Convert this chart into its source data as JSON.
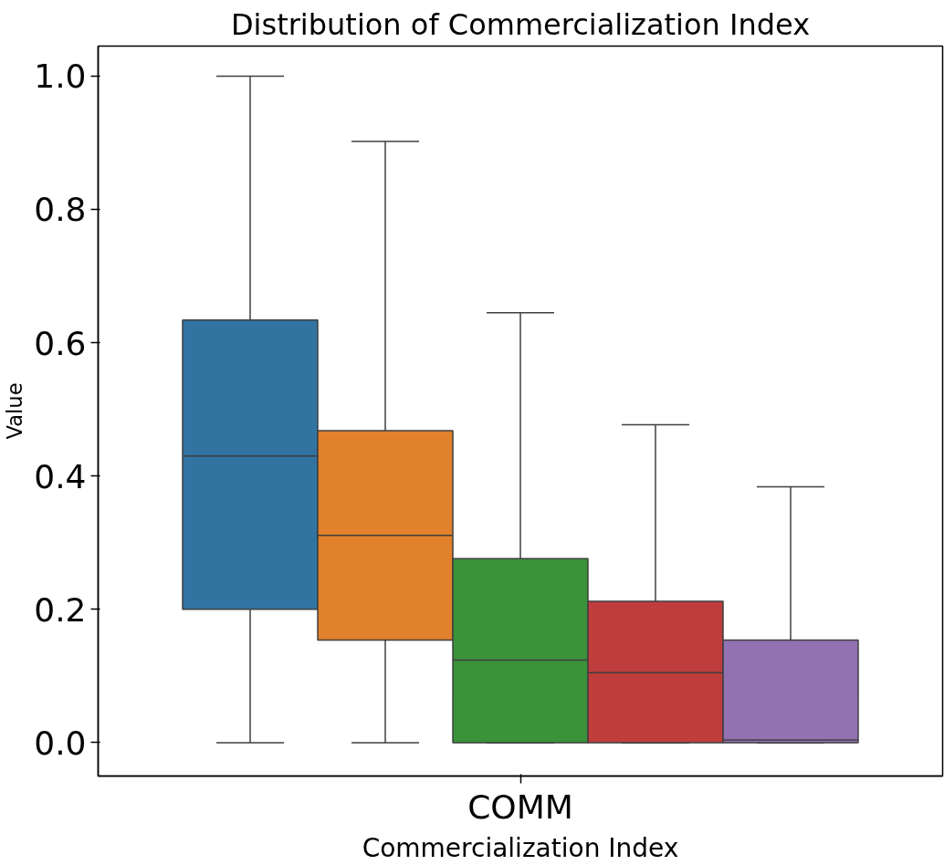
{
  "chart_data": {
    "type": "box",
    "title": "Distribution of Commercialization Index",
    "xlabel": "Commercialization Index",
    "ylabel": "Value",
    "categories": [
      "COMM"
    ],
    "series": [
      {
        "color": "#3274a1",
        "boxes": [
          {
            "low": 0.0,
            "q1": 0.2,
            "median": 0.43,
            "q3": 0.634,
            "high": 1.0
          }
        ]
      },
      {
        "color": "#e1812c",
        "boxes": [
          {
            "low": 0.0,
            "q1": 0.154,
            "median": 0.311,
            "q3": 0.468,
            "high": 0.902
          }
        ]
      },
      {
        "color": "#3a923a",
        "boxes": [
          {
            "low": 0.0,
            "q1": 0.0,
            "median": 0.124,
            "q3": 0.276,
            "high": 0.645
          }
        ]
      },
      {
        "color": "#c03d3e",
        "boxes": [
          {
            "low": 0.0,
            "q1": 0.0,
            "median": 0.105,
            "q3": 0.212,
            "high": 0.477
          }
        ]
      },
      {
        "color": "#9372b2",
        "boxes": [
          {
            "low": 0.0,
            "q1": 0.0,
            "median": 0.004,
            "q3": 0.154,
            "high": 0.384
          }
        ]
      }
    ],
    "ylim": [
      -0.05,
      1.045
    ],
    "yticks": [
      {
        "value": 0,
        "label": "0.0"
      },
      0.2,
      0.4,
      0.6,
      0.8,
      {
        "value": 1,
        "label": "1.0"
      }
    ],
    "grid": false
  }
}
